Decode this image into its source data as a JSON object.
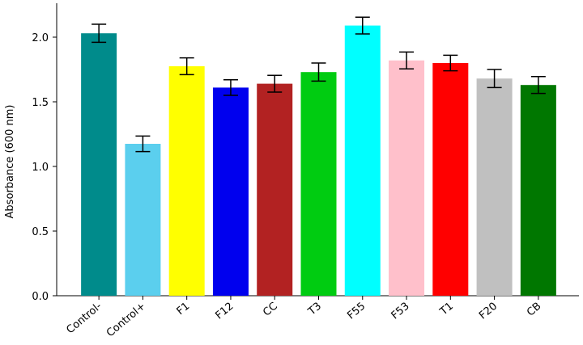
{
  "chart_data": {
    "type": "bar",
    "y_label": "Absorbance (600 nm)",
    "categories": [
      "Control-",
      "Control+",
      "F1",
      "F12",
      "CC",
      "T3",
      "F55",
      "F53",
      "T1",
      "F20",
      "CB"
    ],
    "values": [
      2.03,
      1.175,
      1.775,
      1.61,
      1.64,
      1.73,
      2.09,
      1.82,
      1.8,
      1.68,
      1.63
    ],
    "errors": [
      0.07,
      0.06,
      0.065,
      0.06,
      0.065,
      0.07,
      0.065,
      0.065,
      0.06,
      0.07,
      0.065
    ],
    "colors": [
      "#008b8b",
      "#5bcfee",
      "#ffff00",
      "#0000ee",
      "#b22222",
      "#00cc11",
      "#00ffff",
      "#ffc0cb",
      "#ff0000",
      "#c0c0c0",
      "#007700"
    ],
    "ylim": [
      0,
      2.25
    ],
    "yticks": [
      {
        "value": 0,
        "label": "0.0"
      },
      {
        "value": 0.5,
        "label": "0.5"
      },
      {
        "value": 1,
        "label": "1.0"
      },
      {
        "value": 1.5,
        "label": "1.5"
      },
      {
        "value": 2,
        "label": "2.0"
      }
    ]
  }
}
